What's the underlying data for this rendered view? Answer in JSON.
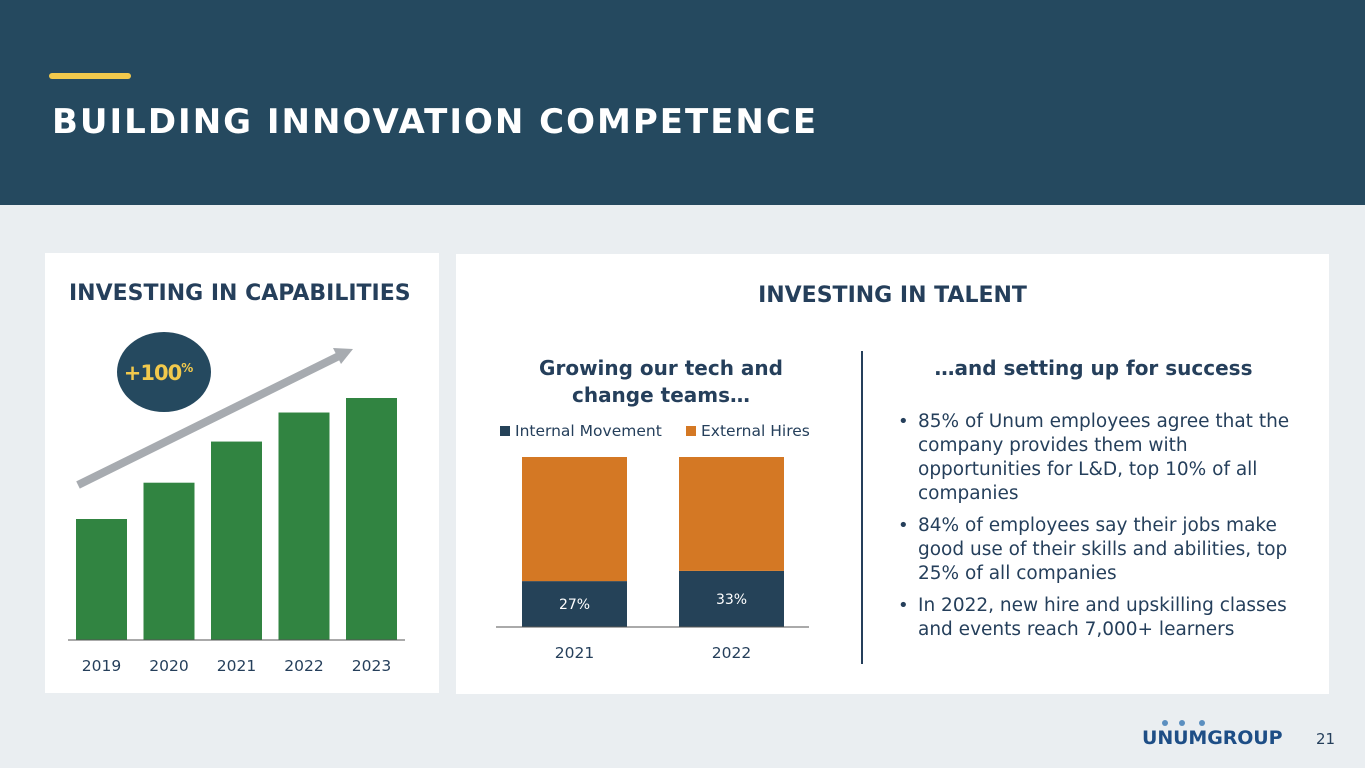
{
  "header": {
    "title": "BUILDING INNOVATION COMPETENCE"
  },
  "left_card": {
    "heading": "INVESTING IN CAPABILITIES",
    "badge": "+100",
    "badge_sup": "%"
  },
  "right_card": {
    "heading": "INVESTING IN TALENT",
    "chart_heading": "Growing our tech and change teams…",
    "success_heading": "…and setting up for success",
    "bullets": [
      "85% of Unum employees agree that the company provides them with opportunities for L&D, top 10% of all companies",
      "84% of employees say their jobs make good use of their skills and abilities, top 25% of all companies",
      "In 2022, new hire and upskilling classes and events reach 7,000+ learners"
    ]
  },
  "footer": {
    "logo_text": "UNUMGROUP",
    "page_number": "21"
  },
  "colors": {
    "navy": "#25495f",
    "green": "#318441",
    "orange": "#d47824",
    "dark_navy": "#254258",
    "gray": "#a7abb0",
    "yellow": "#f2c94c"
  },
  "chart_data": [
    {
      "type": "bar",
      "title": "INVESTING IN CAPABILITIES",
      "categories": [
        "2019",
        "2020",
        "2021",
        "2022",
        "2023"
      ],
      "values": [
        50,
        65,
        82,
        94,
        100
      ],
      "ylim": [
        0,
        100
      ],
      "annotation": "+100%",
      "xlabel": "",
      "ylabel": "",
      "grid": false,
      "legend": "none"
    },
    {
      "type": "bar",
      "stacked": true,
      "title": "Growing our tech and change teams…",
      "categories": [
        "2021",
        "2022"
      ],
      "series": [
        {
          "name": "Internal Movement",
          "values": [
            27,
            33
          ]
        },
        {
          "name": "External Hires",
          "values": [
            73,
            67
          ]
        }
      ],
      "data_labels": [
        "27%",
        "33%"
      ],
      "ylim": [
        0,
        100
      ],
      "legend": "top",
      "xlabel": "",
      "ylabel": "",
      "grid": false
    }
  ]
}
